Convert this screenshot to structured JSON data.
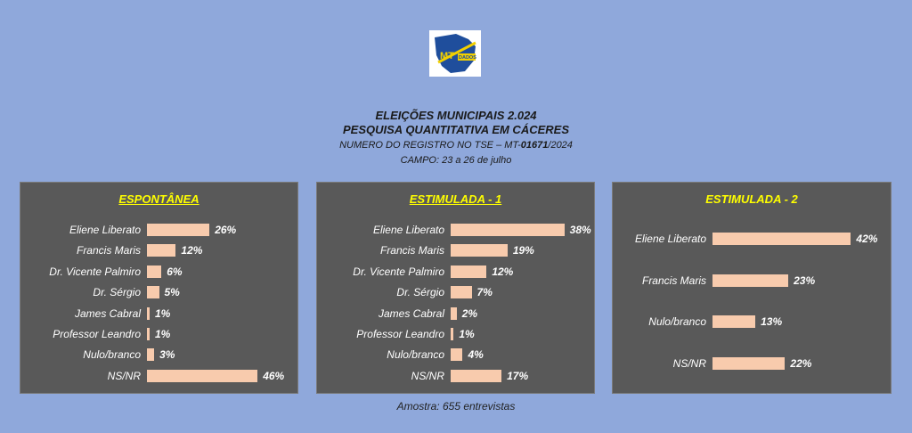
{
  "logo": {
    "text_main": "MT",
    "text_sub": "DADOS",
    "color_blue": "#1f4e9c",
    "color_yellow": "#f2d000"
  },
  "header": {
    "line1": "ELEIÇÕES MUNICIPAIS 2.024",
    "line2": "PESQUISA QUANTITATIVA EM CÁCERES",
    "line3_prefix": "NUMERO DO REGISTRO NO TSE – MT-",
    "line3_number": "01671",
    "line3_suffix": "/2024",
    "line4": "CAMPO: 23 a  26  de  julho"
  },
  "footer": "Amostra: 655 entrevistas",
  "colors": {
    "background": "#8fa8db",
    "panel": "#595959",
    "bar": "#f8cbad",
    "title": "#ffff00"
  },
  "chart_data": [
    {
      "type": "bar",
      "orientation": "horizontal",
      "title": "ESPONTÂNEA",
      "categories": [
        "Eliene Liberato",
        "Francis Maris",
        "Dr. Vicente Palmiro",
        "Dr. Sérgio",
        "James Cabral",
        "Professor Leandro",
        "Nulo/branco",
        "NS/NR"
      ],
      "values": [
        26,
        12,
        6,
        5,
        1,
        1,
        3,
        46
      ],
      "labels": [
        "26%",
        "12%",
        "6%",
        "5%",
        "1%",
        "1%",
        "3%",
        "46%"
      ],
      "unit": "%"
    },
    {
      "type": "bar",
      "orientation": "horizontal",
      "title": "ESTIMULADA - 1",
      "categories": [
        "Eliene Liberato",
        "Francis Maris",
        "Dr. Vicente Palmiro",
        "Dr. Sérgio",
        "James Cabral",
        "Professor Leandro",
        "Nulo/branco",
        "NS/NR"
      ],
      "values": [
        38,
        19,
        12,
        7,
        2,
        1,
        4,
        17
      ],
      "labels": [
        "38%",
        "19%",
        "12%",
        "7%",
        "2%",
        "1%",
        "4%",
        "17%"
      ],
      "unit": "%"
    },
    {
      "type": "bar",
      "orientation": "horizontal",
      "title": "ESTIMULADA - 2",
      "categories": [
        "Eliene Liberato",
        "Francis Maris",
        "Nulo/branco",
        "NS/NR"
      ],
      "values": [
        42,
        23,
        13,
        22
      ],
      "labels": [
        "42%",
        "23%",
        "13%",
        "22%"
      ],
      "unit": "%"
    }
  ]
}
